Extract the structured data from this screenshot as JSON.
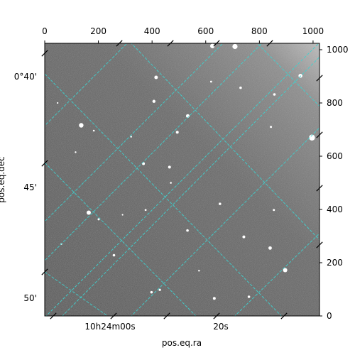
{
  "chart_data": {
    "type": "image",
    "xlabel": "pos.eq.ra",
    "ylabel": "pos.eq.dec",
    "pixel_axes": {
      "xlim": [
        0,
        1024
      ],
      "ylim": [
        0,
        1024
      ],
      "top_ticks": [
        0,
        200,
        400,
        600,
        800,
        1000
      ],
      "right_ticks": [
        0,
        200,
        400,
        600,
        800,
        1000
      ]
    },
    "world_ticks": {
      "ra_bottom": [
        "10h24m00s",
        "20s"
      ],
      "dec_left": [
        "0°40'",
        "45'",
        "50'"
      ]
    },
    "grid": {
      "on": true,
      "color": "#3fd1cf",
      "style": "dashed"
    },
    "colors": {
      "background": "#5e5e5e",
      "stars": "#ffffff"
    },
    "stars": [
      {
        "x": 136,
        "y": 716,
        "mag": 3.2
      },
      {
        "x": 164,
        "y": 388,
        "mag": 3.0
      },
      {
        "x": 415,
        "y": 896,
        "mag": 2.5
      },
      {
        "x": 407,
        "y": 806,
        "mag": 2.2
      },
      {
        "x": 533,
        "y": 751,
        "mag": 2.5
      },
      {
        "x": 494,
        "y": 690,
        "mag": 2.0
      },
      {
        "x": 625,
        "y": 1014,
        "mag": 3.2
      },
      {
        "x": 709,
        "y": 1012,
        "mag": 3.6
      },
      {
        "x": 953,
        "y": 902,
        "mag": 2.8
      },
      {
        "x": 996,
        "y": 670,
        "mag": 4.2
      },
      {
        "x": 730,
        "y": 857,
        "mag": 1.8
      },
      {
        "x": 856,
        "y": 832,
        "mag": 1.8
      },
      {
        "x": 368,
        "y": 572,
        "mag": 2.0
      },
      {
        "x": 465,
        "y": 559,
        "mag": 2.0
      },
      {
        "x": 653,
        "y": 421,
        "mag": 1.8
      },
      {
        "x": 742,
        "y": 297,
        "mag": 2.0
      },
      {
        "x": 840,
        "y": 255,
        "mag": 2.4
      },
      {
        "x": 896,
        "y": 172,
        "mag": 3.0
      },
      {
        "x": 632,
        "y": 66,
        "mag": 2.0
      },
      {
        "x": 761,
        "y": 72,
        "mag": 1.8
      },
      {
        "x": 398,
        "y": 89,
        "mag": 1.8
      },
      {
        "x": 429,
        "y": 98,
        "mag": 1.6
      },
      {
        "x": 258,
        "y": 228,
        "mag": 1.8
      },
      {
        "x": 201,
        "y": 363,
        "mag": 1.5
      },
      {
        "x": 376,
        "y": 398,
        "mag": 1.4
      },
      {
        "x": 532,
        "y": 321,
        "mag": 1.8
      },
      {
        "x": 854,
        "y": 398,
        "mag": 1.5
      },
      {
        "x": 843,
        "y": 710,
        "mag": 1.5
      },
      {
        "x": 62,
        "y": 270,
        "mag": 1.2
      },
      {
        "x": 115,
        "y": 615,
        "mag": 1.2
      },
      {
        "x": 183,
        "y": 696,
        "mag": 1.3
      },
      {
        "x": 470,
        "y": 500,
        "mag": 1.3
      },
      {
        "x": 620,
        "y": 880,
        "mag": 1.4
      },
      {
        "x": 322,
        "y": 673,
        "mag": 1.2
      },
      {
        "x": 575,
        "y": 170,
        "mag": 1.2
      },
      {
        "x": 290,
        "y": 380,
        "mag": 1.1
      },
      {
        "x": 48,
        "y": 800,
        "mag": 1.1
      }
    ]
  }
}
